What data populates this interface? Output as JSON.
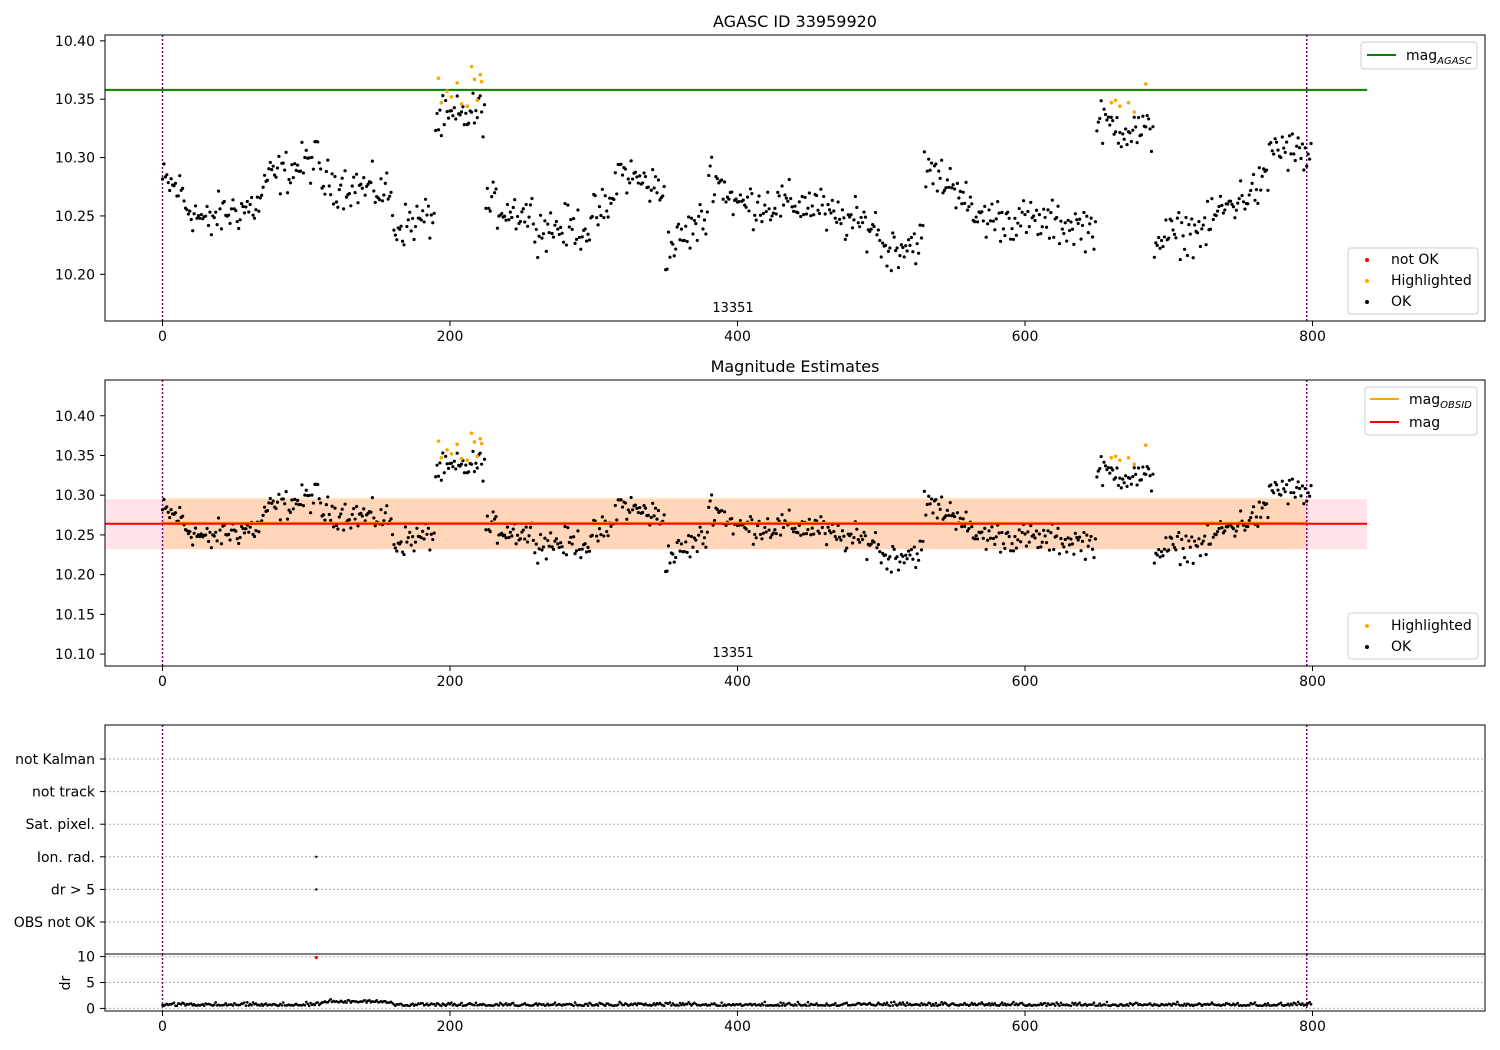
{
  "figure": {
    "colors": {
      "ok": "#000000",
      "highlighted": "#ffa500",
      "not_ok": "#ff0000",
      "agasc_line": "#008000",
      "mag_line": "#ff0000",
      "obs_band": "#ffa500",
      "mag_band": "#ffc0cb",
      "obs_boundary": "#800080"
    }
  },
  "chart_data": [
    {
      "type": "scatter",
      "title": "AGASC ID 33959920",
      "xlim": [
        -40,
        920
      ],
      "ylim": [
        10.16,
        10.405
      ],
      "x_ticks": [
        "0",
        "200",
        "400",
        "600",
        "800"
      ],
      "y_ticks": [
        "10.20",
        "10.25",
        "10.30",
        "10.35",
        "10.40"
      ],
      "obsid_label": "13351",
      "obs_boundaries": [
        0,
        796
      ],
      "mag_agasc": 10.358,
      "legend_lines": [
        {
          "label": "mag",
          "sub": "AGASC"
        }
      ],
      "legend_markers": [
        "not OK",
        "Highlighted",
        "OK"
      ],
      "legend_line_placement": "upper right",
      "legend_marker_placement": "lower right",
      "grid": false,
      "ok_segments": [
        {
          "x": [
            0,
            15
          ],
          "y": [
            10.28,
            10.27
          ]
        },
        {
          "x": [
            15,
            35
          ],
          "y": [
            10.26,
            10.24
          ]
        },
        {
          "x": [
            35,
            70
          ],
          "y": [
            10.25,
            10.26
          ]
        },
        {
          "x": [
            70,
            110
          ],
          "y": [
            10.28,
            10.3
          ]
        },
        {
          "x": [
            110,
            160
          ],
          "y": [
            10.28,
            10.27
          ]
        },
        {
          "x": [
            160,
            190
          ],
          "y": [
            10.24,
            10.25
          ]
        },
        {
          "x": [
            190,
            225
          ],
          "y": [
            10.33,
            10.34
          ]
        },
        {
          "x": [
            225,
            260
          ],
          "y": [
            10.26,
            10.25
          ]
        },
        {
          "x": [
            260,
            300
          ],
          "y": [
            10.24,
            10.24
          ]
        },
        {
          "x": [
            300,
            315
          ],
          "y": [
            10.25,
            10.26
          ]
        },
        {
          "x": [
            315,
            350
          ],
          "y": [
            10.29,
            10.27
          ]
        },
        {
          "x": [
            350,
            380
          ],
          "y": [
            10.22,
            10.25
          ]
        },
        {
          "x": [
            380,
            400
          ],
          "y": [
            10.29,
            10.26
          ]
        },
        {
          "x": [
            400,
            460
          ],
          "y": [
            10.26,
            10.26
          ]
        },
        {
          "x": [
            460,
            500
          ],
          "y": [
            10.25,
            10.24
          ]
        },
        {
          "x": [
            500,
            530
          ],
          "y": [
            10.22,
            10.23
          ]
        },
        {
          "x": [
            530,
            560
          ],
          "y": [
            10.29,
            10.27
          ]
        },
        {
          "x": [
            560,
            650
          ],
          "y": [
            10.25,
            10.24
          ]
        },
        {
          "x": [
            650,
            690
          ],
          "y": [
            10.33,
            10.32
          ]
        },
        {
          "x": [
            690,
            730
          ],
          "y": [
            10.23,
            10.24
          ]
        },
        {
          "x": [
            730,
            770
          ],
          "y": [
            10.25,
            10.28
          ]
        },
        {
          "x": [
            770,
            800
          ],
          "y": [
            10.31,
            10.3
          ]
        }
      ],
      "highlighted_points": {
        "x": [
          192,
          194,
          198,
          201,
          205,
          208,
          212,
          215,
          217,
          219,
          221,
          222,
          660,
          663,
          666,
          672,
          676,
          684
        ],
        "y": [
          10.368,
          10.347,
          10.357,
          10.352,
          10.364,
          10.346,
          10.344,
          10.378,
          10.367,
          10.349,
          10.371,
          10.365,
          10.347,
          10.349,
          10.344,
          10.347,
          10.339,
          10.363
        ]
      },
      "not_ok_points": {
        "x": [],
        "y": []
      }
    },
    {
      "type": "scatter",
      "title": "Magnitude Estimates",
      "xlim": [
        -40,
        920
      ],
      "ylim": [
        10.085,
        10.445
      ],
      "x_ticks": [
        "0",
        "200",
        "400",
        "600",
        "800"
      ],
      "y_ticks": [
        "10.10",
        "10.15",
        "10.20",
        "10.25",
        "10.30",
        "10.35",
        "10.40"
      ],
      "obsid_label": "13351",
      "obs_boundaries": [
        0,
        796
      ],
      "mag": 10.264,
      "mag_band": [
        10.232,
        10.295
      ],
      "mag_obsid_band": [
        10.232,
        10.297
      ],
      "legend_lines": [
        {
          "label": "mag",
          "sub": "OBSID"
        },
        {
          "label": "mag",
          "sub": ""
        }
      ],
      "legend_markers": [
        "Highlighted",
        "OK"
      ],
      "legend_line_placement": "upper right",
      "legend_marker_placement": "lower right",
      "grid": false
    },
    {
      "type": "scatter",
      "xlim": [
        -40,
        920
      ],
      "x_ticks": [
        "0",
        "200",
        "400",
        "600",
        "800"
      ],
      "flag_rows": [
        "not Kalman",
        "not track",
        "Sat. pixel.",
        "Ion. rad.",
        "dr > 5",
        "OBS not OK"
      ],
      "flag_points": [
        {
          "row": "Ion. rad.",
          "x": 107
        },
        {
          "row": "dr > 5",
          "x": 107
        }
      ],
      "dr_ylabel": "dr",
      "dr_ylim": [
        -0.5,
        10.5
      ],
      "dr_ticks": [
        "0",
        "5",
        "10"
      ],
      "dr_outlier": {
        "x": 107,
        "y": 9.8
      },
      "grid": "dotted"
    }
  ]
}
